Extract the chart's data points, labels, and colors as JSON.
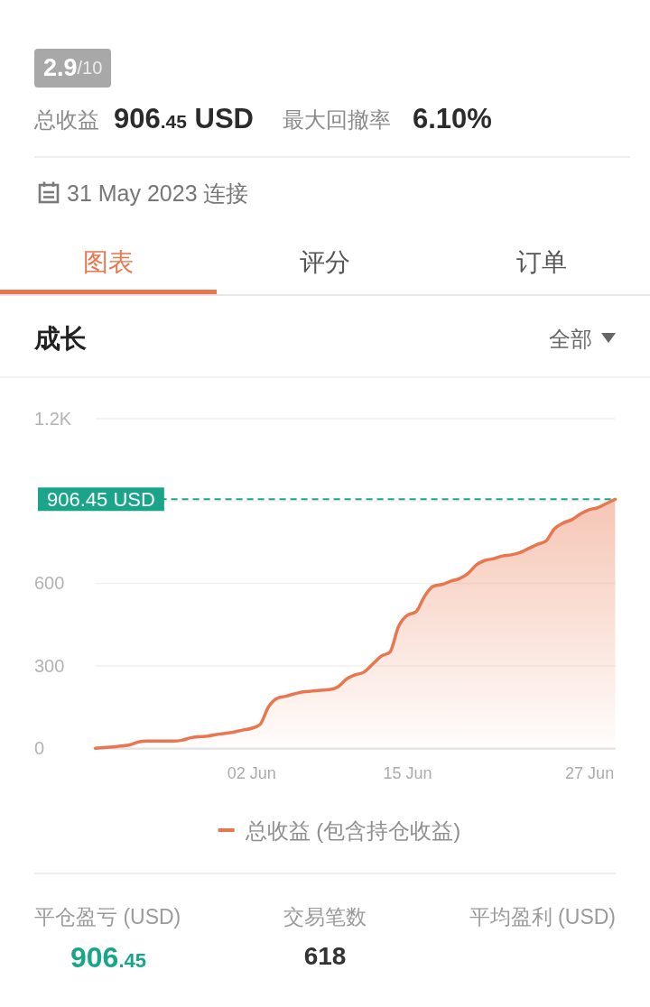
{
  "chart_data": {
    "type": "area",
    "title": "成长",
    "categories": [
      null,
      null,
      null,
      null,
      null,
      null,
      null,
      null,
      null,
      null,
      null,
      null,
      null,
      null,
      null,
      null,
      null,
      null,
      "02 Jun",
      null,
      null,
      null,
      null,
      null,
      null,
      null,
      null,
      null,
      null,
      null,
      null,
      null,
      null,
      null,
      null,
      null,
      "15 Jun",
      null,
      null,
      null,
      null,
      null,
      null,
      null,
      null,
      null,
      null,
      null,
      null,
      null,
      null,
      null,
      null,
      null,
      null,
      null,
      null,
      "27 Jun",
      null,
      null,
      null
    ],
    "series": [
      {
        "name": "总收益 (包含持仓收益)",
        "color": "#e8774f",
        "values": [
          0,
          2,
          5,
          8,
          12,
          23,
          26,
          26,
          26,
          26,
          29,
          38,
          42,
          44,
          50,
          54,
          59,
          66,
          72,
          86,
          151,
          182,
          189,
          198,
          205,
          208,
          211,
          213,
          223,
          252,
          267,
          277,
          306,
          335,
          350,
          443,
          484,
          496,
          553,
          590,
          596,
          608,
          617,
          636,
          668,
          684,
          690,
          700,
          704,
          712,
          727,
          742,
          754,
          799,
          820,
          832,
          853,
          868,
          876,
          891,
          906.45
        ]
      }
    ],
    "ylim": [
      0,
      1200
    ],
    "yticks": [
      0,
      300,
      600,
      {
        "value": 900,
        "label": null
      },
      {
        "value": 1200,
        "label": "1.2K"
      }
    ],
    "grid": "y",
    "legend": "bottom",
    "ref_lines": [
      {
        "axis": "y",
        "value": 906.45,
        "label": "906.45 USD",
        "color": "#1aa58a",
        "line_style": "dashed"
      }
    ],
    "annotations": [
      "2.9/10",
      "总收益",
      "906.45 USD",
      "最大回撤率",
      "6.10%",
      "31 May 2023 连接",
      "图表",
      "评分",
      "订单",
      "全部",
      "平仓盈亏 (USD)",
      "906.45",
      "交易笔数",
      "618",
      "平均盈利 (USD)"
    ]
  }
}
